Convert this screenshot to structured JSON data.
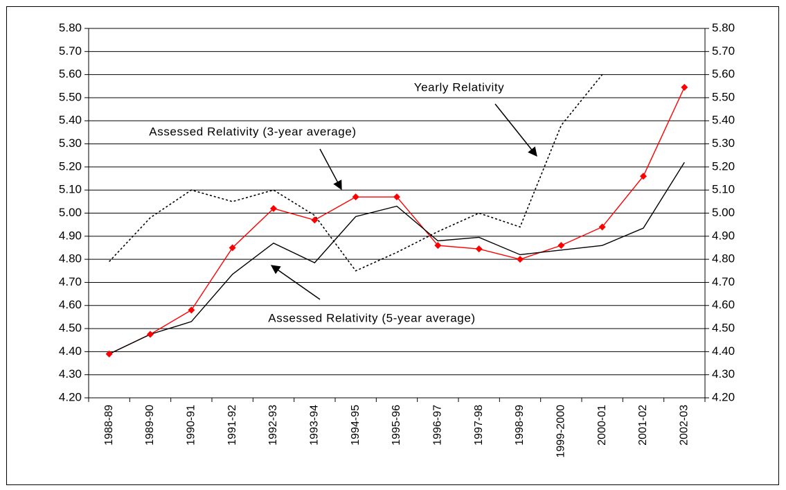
{
  "chart_data": {
    "type": "line",
    "categories": [
      "1988-89",
      "1989-90",
      "1990-91",
      "1991-92",
      "1992-93",
      "1993-94",
      "1994-95",
      "1995-96",
      "1996-97",
      "1997-98",
      "1998-99",
      "1999-2000",
      "2000-01",
      "2001-02",
      "2002-03"
    ],
    "series": [
      {
        "name": "Yearly Relativity",
        "color": "#000000",
        "style": "dotted",
        "values": [
          4.79,
          4.98,
          5.1,
          5.05,
          5.1,
          4.99,
          4.75,
          4.83,
          4.92,
          5.0,
          4.94,
          5.38,
          5.6,
          null,
          null
        ]
      },
      {
        "name": "Assessed Relativity (3-year average)",
        "color": "#ff0000",
        "style": "solid",
        "marker": "diamond",
        "values": [
          4.39,
          4.475,
          4.58,
          4.85,
          5.02,
          4.97,
          5.07,
          5.07,
          4.86,
          4.845,
          4.8,
          4.86,
          4.94,
          5.16,
          5.545
        ]
      },
      {
        "name": "Assessed Relativity (5-year average)",
        "color": "#000000",
        "style": "solid",
        "values": [
          4.39,
          4.475,
          4.53,
          4.735,
          4.87,
          4.785,
          4.985,
          5.03,
          4.88,
          4.895,
          4.82,
          4.84,
          4.86,
          4.935,
          5.22
        ]
      }
    ],
    "ylim": [
      4.2,
      5.8
    ],
    "yticks": [
      {
        "value": 4.2,
        "label": "4.20"
      },
      {
        "value": 4.3,
        "label": "4.30"
      },
      {
        "value": 4.4,
        "label": "4.40"
      },
      {
        "value": 4.5,
        "label": "4.50"
      },
      {
        "value": 4.6,
        "label": "4.60"
      },
      {
        "value": 4.7,
        "label": "4.70"
      },
      {
        "value": 4.8,
        "label": "4.80"
      },
      {
        "value": 4.9,
        "label": "4.90"
      },
      {
        "value": 5.0,
        "label": "5.00"
      },
      {
        "value": 5.1,
        "label": "5.10"
      },
      {
        "value": 5.2,
        "label": "5.20"
      },
      {
        "value": 5.3,
        "label": "5.30"
      },
      {
        "value": 5.4,
        "label": "5.40"
      },
      {
        "value": 5.5,
        "label": "5.50"
      },
      {
        "value": 5.6,
        "label": "5.60"
      },
      {
        "value": 5.7,
        "label": "5.70"
      },
      {
        "value": 5.8,
        "label": "5.80"
      }
    ],
    "grid": true,
    "annotations": [
      "Yearly Relativity",
      "Assessed Relativity (3-year average)",
      "Assessed Relativity (5-year average)"
    ]
  }
}
